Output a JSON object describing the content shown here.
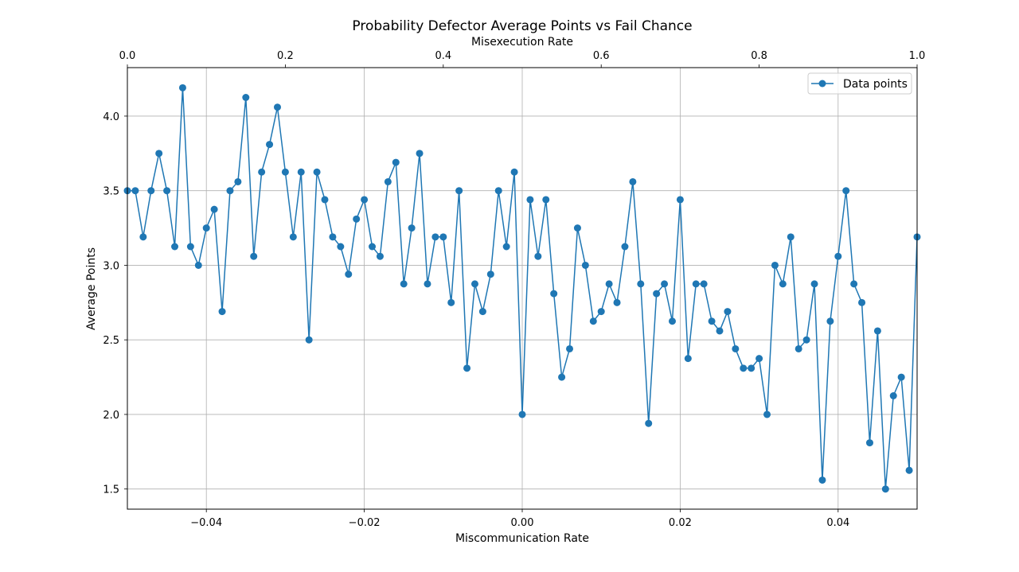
{
  "chart_data": {
    "type": "line",
    "title": "Probability Defector Average Points vs Fail Chance",
    "xlabel": "Miscommunication Rate",
    "ylabel": "Average Points",
    "top_xlabel": "Misexecution Rate",
    "xlim": [
      -0.05,
      0.05
    ],
    "ylim": [
      1.365,
      4.325
    ],
    "top_xlim": [
      0.0,
      1.0
    ],
    "grid": true,
    "legend_position": "top-right",
    "x_ticks": [
      -0.04,
      -0.02,
      0.0,
      0.02,
      0.04
    ],
    "x_tick_labels": [
      "−0.04",
      "−0.02",
      "0.00",
      "0.02",
      "0.04"
    ],
    "y_ticks": [
      1.5,
      2.0,
      2.5,
      3.0,
      3.5,
      4.0
    ],
    "y_tick_labels": [
      "1.5",
      "2.0",
      "2.5",
      "3.0",
      "3.5",
      "4.0"
    ],
    "top_x_ticks": [
      0.0,
      0.2,
      0.4,
      0.6,
      0.8,
      1.0
    ],
    "top_x_tick_labels": [
      "0.0",
      "0.2",
      "0.4",
      "0.6",
      "0.8",
      "1.0"
    ],
    "color": "#1f77b4",
    "series": [
      {
        "name": "Data points",
        "x": [
          -0.05,
          -0.049,
          -0.048,
          -0.047,
          -0.046,
          -0.045,
          -0.044,
          -0.043,
          -0.042,
          -0.041,
          -0.04,
          -0.039,
          -0.038,
          -0.037,
          -0.036,
          -0.035,
          -0.034,
          -0.033,
          -0.032,
          -0.031,
          -0.03,
          -0.029,
          -0.028,
          -0.027,
          -0.026,
          -0.025,
          -0.024,
          -0.023,
          -0.022,
          -0.021,
          -0.02,
          -0.019,
          -0.018,
          -0.017,
          -0.016,
          -0.015,
          -0.014,
          -0.013,
          -0.012,
          -0.011,
          -0.01,
          -0.009,
          -0.008,
          -0.007,
          -0.006,
          -0.005,
          -0.004,
          -0.003,
          -0.002,
          -0.001,
          0.0,
          0.001,
          0.002,
          0.003,
          0.004,
          0.005,
          0.006,
          0.007,
          0.008,
          0.009,
          0.01,
          0.011,
          0.012,
          0.013,
          0.014,
          0.015,
          0.016,
          0.017,
          0.018,
          0.019,
          0.02,
          0.021,
          0.022,
          0.023,
          0.024,
          0.025,
          0.026,
          0.027,
          0.028,
          0.029,
          0.03,
          0.031,
          0.032,
          0.033,
          0.034,
          0.035,
          0.036,
          0.037,
          0.038,
          0.039,
          0.04,
          0.041,
          0.042,
          0.043,
          0.044,
          0.045,
          0.046,
          0.047,
          0.048,
          0.049,
          0.05
        ],
        "y": [
          3.5,
          3.5,
          3.19,
          3.5,
          3.75,
          3.5,
          3.125,
          4.19,
          3.125,
          3.0,
          3.25,
          3.375,
          2.69,
          3.5,
          3.56,
          4.125,
          3.06,
          3.625,
          3.81,
          4.06,
          3.625,
          3.19,
          3.625,
          2.5,
          3.625,
          3.44,
          3.19,
          3.125,
          2.94,
          3.31,
          3.44,
          3.125,
          3.06,
          3.56,
          3.69,
          2.875,
          3.25,
          3.75,
          2.875,
          3.19,
          3.19,
          2.75,
          3.5,
          2.31,
          2.875,
          2.69,
          2.94,
          3.5,
          3.125,
          3.625,
          2.0,
          3.44,
          3.06,
          3.44,
          2.81,
          2.25,
          2.44,
          3.25,
          3.0,
          2.625,
          2.69,
          2.875,
          2.75,
          3.125,
          3.56,
          2.875,
          1.94,
          2.81,
          2.875,
          2.625,
          3.44,
          2.375,
          2.875,
          2.875,
          2.625,
          2.56,
          2.69,
          2.44,
          2.31,
          2.31,
          2.375,
          2.0,
          3.0,
          2.875,
          3.19,
          2.44,
          2.5,
          2.875,
          1.56,
          2.625,
          3.06,
          3.5,
          2.875,
          2.75,
          1.81,
          2.56,
          1.5,
          2.125,
          2.25,
          1.625,
          3.19
        ]
      }
    ]
  }
}
